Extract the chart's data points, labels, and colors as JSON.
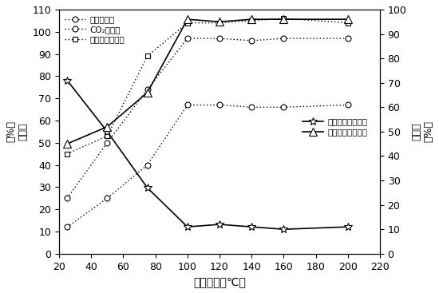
{
  "x": [
    25,
    50,
    75,
    100,
    120,
    140,
    160,
    200
  ],
  "methanol_conversion": [
    12,
    25,
    40,
    67,
    67,
    66,
    66,
    67
  ],
  "co2_conversion": [
    25,
    50,
    74,
    97,
    97,
    96,
    97,
    97
  ],
  "po_conversion": [
    45,
    53,
    89,
    104,
    104,
    105,
    106,
    104
  ],
  "dmc_selectivity": [
    71,
    50,
    27,
    11,
    12,
    11,
    10,
    11
  ],
  "dmm_selectivity": [
    45,
    52,
    66,
    96,
    95,
    96,
    96,
    96
  ],
  "xlabel": "反应温度（℃）",
  "ylabel_left_top": "转化率",
  "ylabel_left_pct": "（%）",
  "ylabel_right_top": "选择性",
  "ylabel_right_pct": "（%）",
  "legend_methanol": "甲醇转化率",
  "legend_co2": "CO₂转化率",
  "legend_po": "环氧丙烷转化率",
  "legend_dmc": "碳酸丙烷酯选择性",
  "legend_dmm": "碳酸二甲酯选择性",
  "ylim_left": [
    0,
    110
  ],
  "ylim_right": [
    0,
    100
  ],
  "yticks_left": [
    0,
    10,
    20,
    30,
    40,
    50,
    60,
    70,
    80,
    90,
    100,
    110
  ],
  "yticks_right": [
    0,
    10,
    20,
    30,
    40,
    50,
    60,
    70,
    80,
    90,
    100
  ],
  "xticks": [
    20,
    40,
    60,
    80,
    100,
    120,
    140,
    160,
    180,
    200,
    220
  ],
  "xlim": [
    20,
    220
  ]
}
